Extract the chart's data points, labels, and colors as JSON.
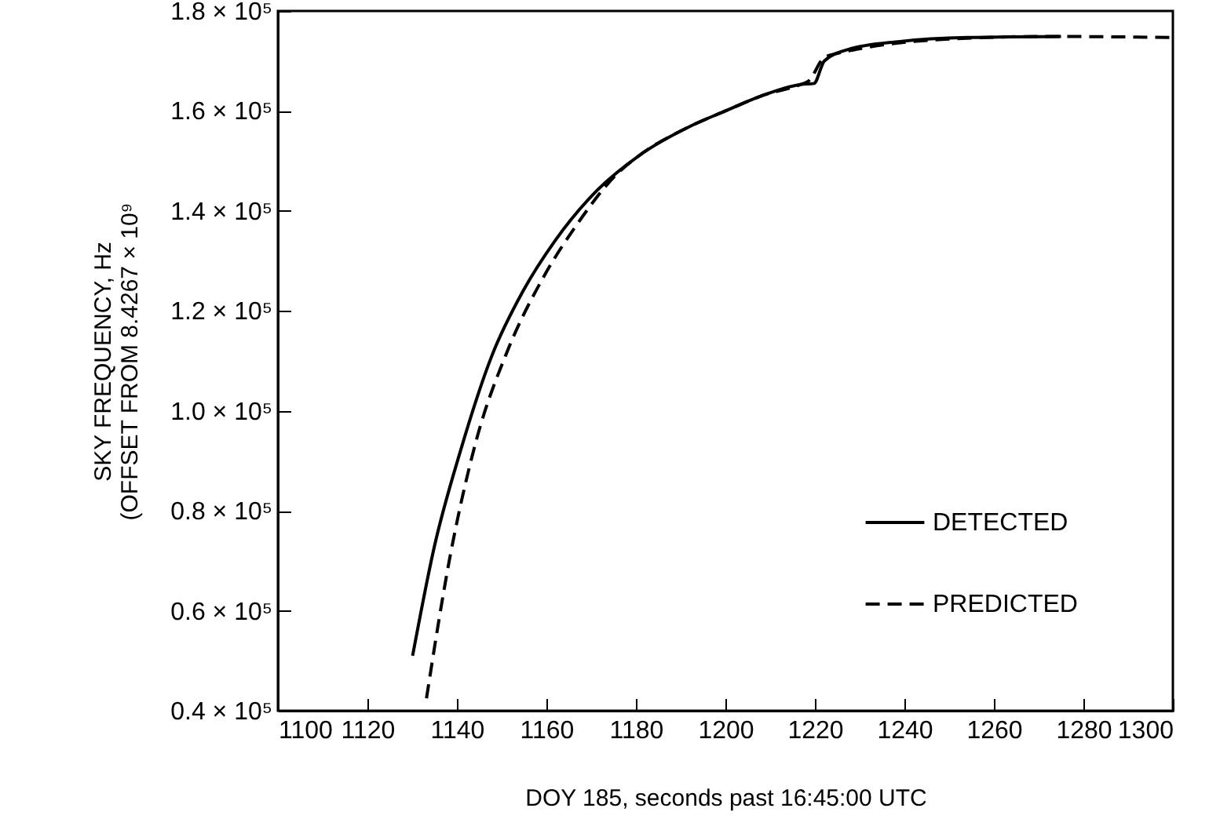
{
  "chart_data": {
    "type": "line",
    "xlabel": "DOY 185, seconds past 16:45:00 UTC",
    "ylabel": "SKY FREQUENCY, Hz\n(OFFSET FROM 8.4267 × 10⁹",
    "xlim": [
      1100,
      1300
    ],
    "xticks": [
      1100,
      1120,
      1140,
      1160,
      1180,
      1200,
      1220,
      1240,
      1260,
      1280,
      1300
    ],
    "ylim": [
      40000,
      180000
    ],
    "yticks": [
      {
        "value": 40000,
        "label": "0.4 × 10⁵"
      },
      {
        "value": 60000,
        "label": "0.6 × 10⁵"
      },
      {
        "value": 80000,
        "label": "0.8 × 10⁵"
      },
      {
        "value": 100000,
        "label": "1.0 × 10⁵"
      },
      {
        "value": 120000,
        "label": "1.2 × 10⁵"
      },
      {
        "value": 140000,
        "label": "1.4 × 10⁵"
      },
      {
        "value": 160000,
        "label": "1.6 × 10⁵"
      },
      {
        "value": 180000,
        "label": "1.8 × 10⁵"
      }
    ],
    "grid": false,
    "legend": "bottom right",
    "series": [
      {
        "name": "DETECTED",
        "color": "#000000",
        "line_style": "solid",
        "x": [
          1130.1,
          1135,
          1140.8,
          1147.8,
          1154.8,
          1161.9,
          1171.2,
          1180.6,
          1192.3,
          1200,
          1208,
          1216.8,
          1219.8,
          1222.1,
          1227.4,
          1239,
          1254,
          1275
        ],
        "values": [
          51000,
          73000,
          92000,
          111000,
          124000,
          134000,
          144000,
          151000,
          157000,
          160000,
          163000,
          165300,
          165500,
          170000,
          172300,
          173900,
          174700,
          174900
        ]
      },
      {
        "name": "PREDICTED",
        "color": "#000000",
        "line_style": "dashed",
        "x": [
          1133.2,
          1138.5,
          1144.3,
          1151.3,
          1159.5,
          1166.6,
          1175.9,
          1180.6,
          1192.3,
          1200,
          1208,
          1216.8,
          1218.6,
          1222.1,
          1225,
          1230.9,
          1248.4,
          1272,
          1300
        ],
        "values": [
          42500,
          71000,
          94000,
          112000,
          127000,
          137000,
          147500,
          151000,
          157000,
          160000,
          163000,
          165300,
          166000,
          170700,
          171500,
          172600,
          174300,
          174900,
          174700
        ]
      }
    ]
  }
}
